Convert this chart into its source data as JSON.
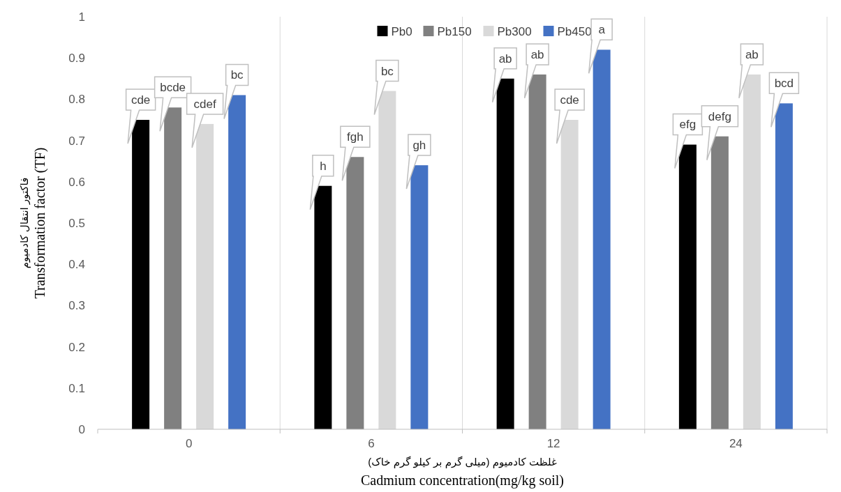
{
  "chart_data": {
    "type": "bar",
    "xlabel": "غلظت کادمیوم (میلی گرم بر کیلو گرم خاک)\nCadmium concentration(mg/kg soil)",
    "ylabel": "فاکتور انتقال کادمیوم\nTransformation factor (TF)",
    "categories": [
      "0",
      "6",
      "12",
      "24"
    ],
    "series": [
      {
        "name": "Pb0",
        "color": "#000000",
        "values": [
          0.75,
          0.59,
          0.85,
          0.69
        ]
      },
      {
        "name": "Pb150",
        "color": "#808080",
        "values": [
          0.78,
          0.66,
          0.86,
          0.71
        ]
      },
      {
        "name": "Pb300",
        "color": "#d9d9d9",
        "values": [
          0.74,
          0.82,
          0.75,
          0.86
        ]
      },
      {
        "name": "Pb450",
        "color": "#4472c4",
        "values": [
          0.81,
          0.64,
          0.92,
          0.79
        ]
      }
    ],
    "annotations": [
      "cde",
      "bcde",
      "cdef",
      "bc",
      "h",
      "fgh",
      "bc",
      "gh",
      "ab",
      "ab",
      "cde",
      "a",
      "efg",
      "defg",
      "ab",
      "bcd"
    ],
    "ylim": [
      0,
      1
    ],
    "yticks": [
      0,
      0.1,
      0.2,
      0.3,
      0.4,
      0.5,
      0.6,
      0.7,
      0.8,
      0.9,
      1
    ],
    "grid": "x",
    "legend": "top"
  }
}
